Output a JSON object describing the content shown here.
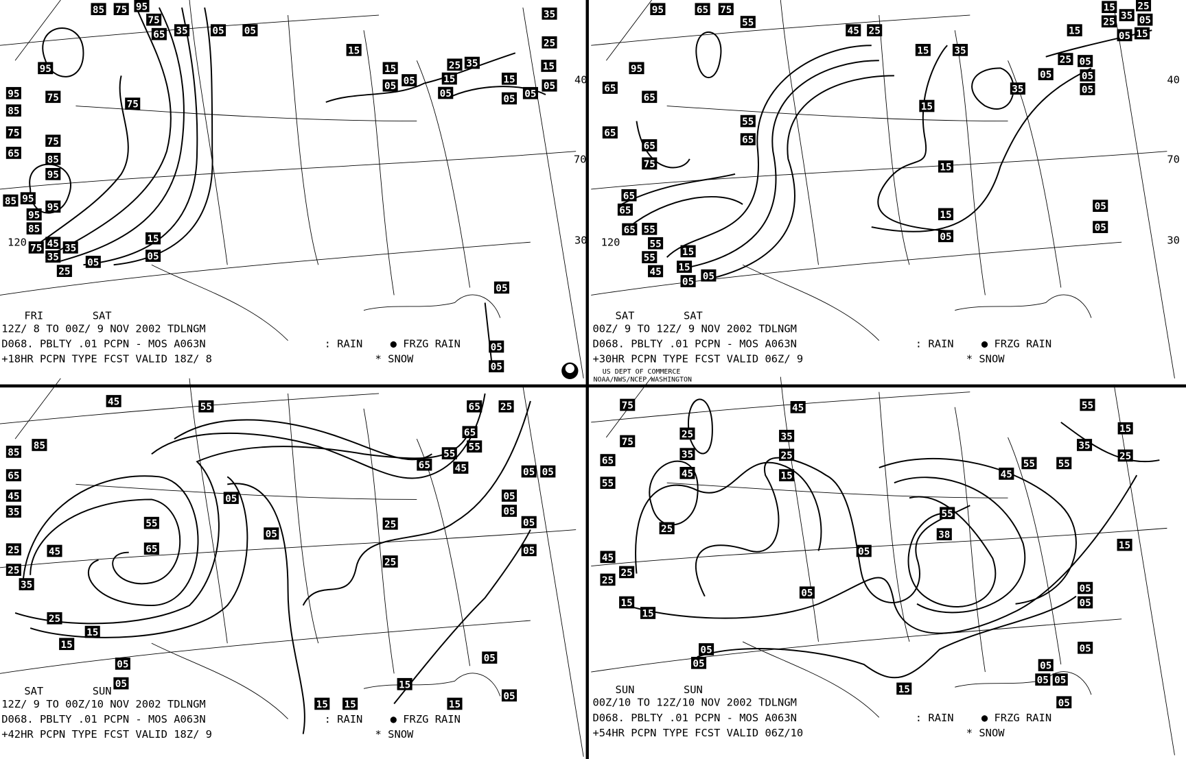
{
  "colors": {
    "background": "#ffffff",
    "lines": "#000000",
    "label_box": "#000000",
    "label_text": "#ffffff"
  },
  "logo": {
    "text": "NOAA"
  },
  "credit": {
    "line1": "US DEPT OF COMMERCE",
    "line2": "NOAA/NWS/NCEP WASHINGTON"
  },
  "legend": {
    "rain": ": RAIN",
    "frzg": "● FRZG RAIN",
    "snow": "* SNOW"
  },
  "lat_lon_labels": [
    "40",
    "70",
    "30",
    "120",
    "40",
    "70",
    "30",
    "120"
  ],
  "panels": [
    {
      "day1": "FRI",
      "day2": "SAT",
      "line1": "12Z/ 8 TO 00Z/ 9 NOV 2002  TDLNGM",
      "line2": "D068. PBLTY .01 PCPN - MOS A063N",
      "line3": "+18HR PCPN TYPE FCST VALID 18Z/ 8",
      "labels": [
        "85",
        "75",
        "95",
        "75",
        "65",
        "35",
        "05",
        "05",
        "95",
        "95",
        "75",
        "85",
        "75",
        "75",
        "75",
        "65",
        "85",
        "95",
        "85",
        "95",
        "95",
        "95",
        "85",
        "75",
        "45",
        "35",
        "35",
        "25",
        "15",
        "05",
        "05",
        "15",
        "15",
        "05",
        "05",
        "05",
        "15",
        "25",
        "35",
        "15",
        "15",
        "35",
        "25",
        "05",
        "05",
        "05",
        "05",
        "05",
        "05"
      ]
    },
    {
      "day1": "SAT",
      "day2": "SAT",
      "line1": "00Z/ 9 TO 12Z/ 9 NOV 2002  TDLNGM",
      "line2": "D068. PBLTY .01 PCPN - MOS A063N",
      "line3": "+30HR PCPN TYPE FCST VALID 06Z/ 9",
      "labels": [
        "95",
        "65",
        "75",
        "55",
        "45",
        "25",
        "95",
        "65",
        "65",
        "65",
        "55",
        "65",
        "65",
        "75",
        "65",
        "65",
        "65",
        "55",
        "55",
        "55",
        "45",
        "15",
        "15",
        "05",
        "05",
        "15",
        "35",
        "15",
        "35",
        "15",
        "15",
        "05",
        "25",
        "15",
        "25",
        "15",
        "05",
        "35",
        "25",
        "15",
        "05",
        "05",
        "05",
        "05",
        "05",
        "05",
        "05"
      ]
    },
    {
      "day1": "SAT",
      "day2": "SUN",
      "line1": "12Z/ 9 TO 00Z/10 NOV 2002  TDLNGM",
      "line2": "D068. PBLTY .01 PCPN - MOS A063N",
      "line3": "+42HR PCPN TYPE FCST VALID 18Z/ 9",
      "labels": [
        "45",
        "55",
        "85",
        "85",
        "65",
        "45",
        "35",
        "25",
        "45",
        "25",
        "35",
        "55",
        "65",
        "25",
        "15",
        "15",
        "05",
        "05",
        "05",
        "05",
        "25",
        "25",
        "65",
        "25",
        "65",
        "55",
        "55",
        "45",
        "65",
        "05",
        "05",
        "05",
        "05",
        "05",
        "05",
        "05",
        "15",
        "15",
        "15",
        "15",
        "05"
      ]
    },
    {
      "day1": "SUN",
      "day2": "SUN",
      "line1": "00Z/10 TO 12Z/10 NOV 2002  TDLNGM",
      "line2": "D068. PBLTY .01 PCPN - MOS A063N",
      "line3": "+54HR PCPN TYPE FCST VALID 06Z/10",
      "labels": [
        "75",
        "75",
        "65",
        "55",
        "25",
        "35",
        "45",
        "45",
        "35",
        "25",
        "15",
        "25",
        "45",
        "25",
        "25",
        "15",
        "15",
        "05",
        "05",
        "05",
        "05",
        "55",
        "38",
        "45",
        "55",
        "55",
        "55",
        "35",
        "25",
        "15",
        "15",
        "05",
        "05",
        "05",
        "05",
        "15",
        "05",
        "05",
        "05"
      ]
    }
  ]
}
